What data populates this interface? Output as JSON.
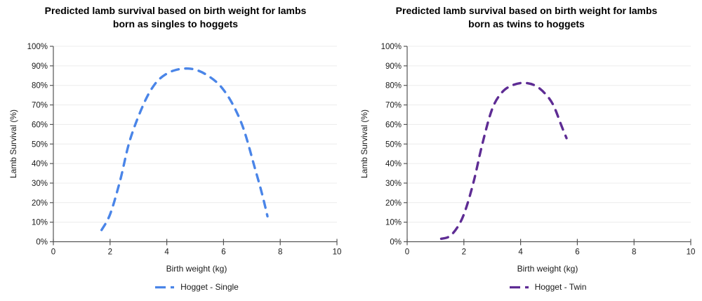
{
  "colors": {
    "accent_blue": "#4a85e8",
    "accent_purple": "#5e2c94",
    "axis": "#555555",
    "grid": "#ececec",
    "text": "#1a1a1a"
  },
  "chart_data": [
    {
      "type": "line",
      "title": "Predicted lamb survival based on birth weight for lambs born as singles to hoggets",
      "title_lines": [
        "Predicted lamb survival based on birth weight for lambs",
        "born as singles to hoggets"
      ],
      "xlabel": "Birth weight (kg)",
      "ylabel": "Lamb Survival (%)",
      "xlim": [
        0,
        10
      ],
      "ylim": [
        0,
        100
      ],
      "x_tick_labels": [
        "0",
        "2",
        "4",
        "6",
        "8",
        "10"
      ],
      "y_tick_labels": [
        "0%",
        "10%",
        "20%",
        "30%",
        "40%",
        "50%",
        "60%",
        "70%",
        "80%",
        "90%",
        "100%"
      ],
      "grid": "horizontal-light",
      "legend_position": "bottom",
      "series": [
        {
          "name": "Hogget - Single",
          "color": "#4a85e8",
          "line_style": "dashed",
          "points": [
            [
              1.7,
              6
            ],
            [
              2.0,
              14
            ],
            [
              2.35,
              31
            ],
            [
              2.7,
              52
            ],
            [
              3.2,
              71
            ],
            [
              3.6,
              81
            ],
            [
              4.0,
              86
            ],
            [
              4.4,
              88.2
            ],
            [
              4.75,
              88.6
            ],
            [
              5.1,
              87.6
            ],
            [
              5.5,
              84.5
            ],
            [
              5.9,
              79.5
            ],
            [
              6.3,
              71
            ],
            [
              6.7,
              58
            ],
            [
              7.1,
              38
            ],
            [
              7.35,
              25
            ],
            [
              7.55,
              13
            ]
          ]
        }
      ]
    },
    {
      "type": "line",
      "title": "Predicted lamb survival based on birth weight for lambs born as twins to hoggets",
      "title_lines": [
        "Predicted lamb survival based on birth weight for lambs",
        "born as twins to hoggets"
      ],
      "xlabel": "Birth weight (kg)",
      "ylabel": "Lamb Survival (%)",
      "xlim": [
        0,
        10
      ],
      "ylim": [
        0,
        100
      ],
      "x_tick_labels": [
        "0",
        "2",
        "4",
        "6",
        "8",
        "10"
      ],
      "y_tick_labels": [
        "0%",
        "10%",
        "20%",
        "30%",
        "40%",
        "50%",
        "60%",
        "70%",
        "80%",
        "90%",
        "100%"
      ],
      "grid": "horizontal-light",
      "legend_position": "bottom",
      "series": [
        {
          "name": "Hogget - Twin",
          "color": "#5e2c94",
          "line_style": "dashed",
          "points": [
            [
              1.2,
              1.5
            ],
            [
              1.5,
              2.8
            ],
            [
              1.8,
              8
            ],
            [
              2.05,
              16
            ],
            [
              2.35,
              31
            ],
            [
              2.65,
              50
            ],
            [
              3.0,
              68
            ],
            [
              3.35,
              76.5
            ],
            [
              3.7,
              80
            ],
            [
              4.1,
              81.3
            ],
            [
              4.5,
              80
            ],
            [
              4.85,
              76
            ],
            [
              5.15,
              70
            ],
            [
              5.45,
              59
            ],
            [
              5.62,
              53
            ]
          ]
        }
      ]
    }
  ]
}
